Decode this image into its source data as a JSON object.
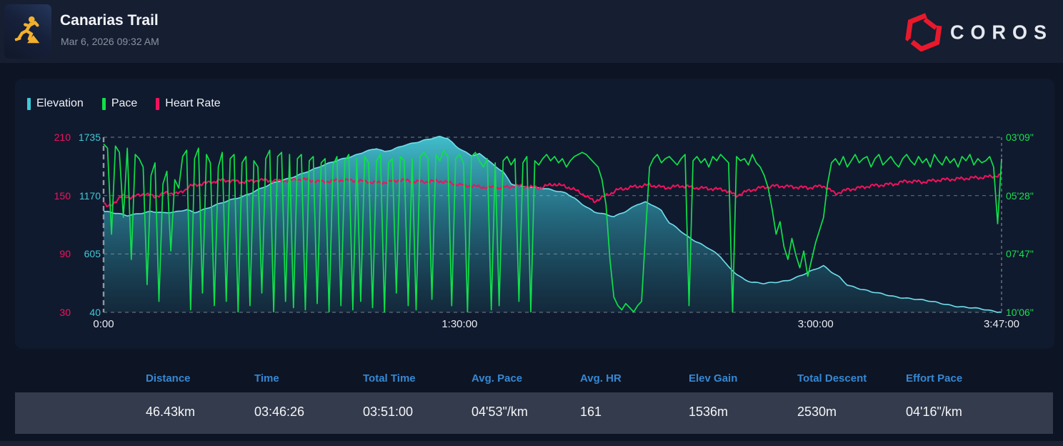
{
  "header": {
    "title": "Canarias Trail",
    "datetime": "Mar 6, 2026 09:32 AM",
    "activity_icon": "trail-run-icon",
    "brand": "COROS",
    "brand_red": "#e8192c"
  },
  "legend": [
    {
      "label": "Elevation",
      "color": "#3fc9d6"
    },
    {
      "label": "Pace",
      "color": "#10e04a"
    },
    {
      "label": "Heart Rate",
      "color": "#f2125c"
    }
  ],
  "chart_data": {
    "type": "line",
    "x_unit": "minutes",
    "x_range": [
      0,
      227
    ],
    "x_ticks": [
      {
        "t": 0,
        "label": "0:00"
      },
      {
        "t": 90,
        "label": "1:30:00"
      },
      {
        "t": 180,
        "label": "3:00:00"
      },
      {
        "t": 227,
        "label": "3:47:00"
      }
    ],
    "grid": "horizontal-dashed",
    "axes": {
      "heart_rate": {
        "color": "#f31260",
        "range": [
          30,
          210
        ],
        "ticks": [
          210,
          150,
          90,
          30
        ]
      },
      "elevation": {
        "color": "#3fc9d6",
        "range": [
          40,
          1735
        ],
        "ticks": [
          1735,
          1170,
          605,
          40
        ]
      },
      "pace": {
        "color": "#17e14d",
        "range_seconds_per_km": [
          189,
          606
        ],
        "ticks": [
          "03'09\"",
          "05'28\"",
          "07'47\"",
          "10'06\""
        ]
      }
    },
    "series": [
      {
        "name": "Elevation",
        "unit": "m",
        "style": "area",
        "color": "#3fc9d6",
        "points": [
          [
            0,
            1020
          ],
          [
            3,
            995
          ],
          [
            6,
            975
          ],
          [
            9,
            1000
          ],
          [
            12,
            1020
          ],
          [
            15,
            1000
          ],
          [
            18,
            1005
          ],
          [
            21,
            1035
          ],
          [
            23,
            1010
          ],
          [
            27,
            1060
          ],
          [
            31,
            1110
          ],
          [
            35,
            1160
          ],
          [
            39,
            1230
          ],
          [
            43,
            1290
          ],
          [
            47,
            1335
          ],
          [
            51,
            1400
          ],
          [
            55,
            1455
          ],
          [
            59,
            1505
          ],
          [
            63,
            1555
          ],
          [
            66,
            1600
          ],
          [
            69,
            1625
          ],
          [
            71,
            1590
          ],
          [
            73,
            1610
          ],
          [
            76,
            1660
          ],
          [
            79,
            1690
          ],
          [
            82,
            1715
          ],
          [
            85,
            1735
          ],
          [
            87,
            1720
          ],
          [
            89,
            1650
          ],
          [
            91,
            1605
          ],
          [
            93,
            1562
          ],
          [
            95,
            1575
          ],
          [
            97,
            1520
          ],
          [
            99,
            1445
          ],
          [
            101,
            1400
          ],
          [
            103,
            1285
          ],
          [
            106,
            1262
          ],
          [
            109,
            1250
          ],
          [
            112,
            1230
          ],
          [
            114,
            1215
          ],
          [
            117,
            1195
          ],
          [
            119,
            1150
          ],
          [
            121,
            1090
          ],
          [
            124,
            1010
          ],
          [
            126,
            990
          ],
          [
            129,
            965
          ],
          [
            132,
            1022
          ],
          [
            135,
            1090
          ],
          [
            137,
            1105
          ],
          [
            139,
            1070
          ],
          [
            141,
            1020
          ],
          [
            143,
            905
          ],
          [
            145,
            860
          ],
          [
            147,
            795
          ],
          [
            150,
            720
          ],
          [
            153,
            655
          ],
          [
            156,
            575
          ],
          [
            158,
            480
          ],
          [
            160,
            415
          ],
          [
            162,
            360
          ],
          [
            164,
            330
          ],
          [
            167,
            315
          ],
          [
            170,
            330
          ],
          [
            173,
            352
          ],
          [
            176,
            395
          ],
          [
            179,
            440
          ],
          [
            182,
            485
          ],
          [
            184,
            430
          ],
          [
            186,
            385
          ],
          [
            188,
            310
          ],
          [
            191,
            270
          ],
          [
            194,
            235
          ],
          [
            197,
            215
          ],
          [
            200,
            195
          ],
          [
            204,
            175
          ],
          [
            208,
            150
          ],
          [
            212,
            125
          ],
          [
            216,
            100
          ],
          [
            220,
            80
          ],
          [
            224,
            55
          ],
          [
            227,
            40
          ]
        ]
      },
      {
        "name": "Heart Rate",
        "unit": "bpm",
        "style": "line",
        "color": "#f2125c",
        "points": [
          [
            0,
            142
          ],
          [
            1,
            138
          ],
          [
            3,
            144
          ],
          [
            5,
            150
          ],
          [
            7,
            148
          ],
          [
            10,
            152
          ],
          [
            13,
            149
          ],
          [
            16,
            153
          ],
          [
            19,
            152
          ],
          [
            22,
            160
          ],
          [
            26,
            163
          ],
          [
            30,
            166
          ],
          [
            35,
            164
          ],
          [
            40,
            166
          ],
          [
            45,
            165
          ],
          [
            50,
            167
          ],
          [
            55,
            164
          ],
          [
            60,
            166
          ],
          [
            65,
            165
          ],
          [
            70,
            163
          ],
          [
            75,
            166
          ],
          [
            80,
            164
          ],
          [
            85,
            165
          ],
          [
            90,
            161
          ],
          [
            95,
            159
          ],
          [
            100,
            158
          ],
          [
            105,
            160
          ],
          [
            110,
            158
          ],
          [
            114,
            162
          ],
          [
            118,
            158
          ],
          [
            121,
            152
          ],
          [
            124,
            144
          ],
          [
            127,
            150
          ],
          [
            130,
            156
          ],
          [
            134,
            159
          ],
          [
            138,
            161
          ],
          [
            142,
            158
          ],
          [
            146,
            160
          ],
          [
            150,
            158
          ],
          [
            154,
            157
          ],
          [
            157,
            156
          ],
          [
            160,
            150
          ],
          [
            163,
            155
          ],
          [
            166,
            158
          ],
          [
            170,
            160
          ],
          [
            174,
            159
          ],
          [
            178,
            158
          ],
          [
            182,
            160
          ],
          [
            185,
            152
          ],
          [
            188,
            156
          ],
          [
            191,
            158
          ],
          [
            194,
            160
          ],
          [
            197,
            161
          ],
          [
            200,
            162
          ],
          [
            203,
            165
          ],
          [
            207,
            164
          ],
          [
            211,
            166
          ],
          [
            215,
            167
          ],
          [
            219,
            168
          ],
          [
            223,
            169
          ],
          [
            227,
            171
          ]
        ]
      },
      {
        "name": "Pace",
        "unit": "seconds_per_km",
        "style": "line",
        "color": "#10e04a",
        "values_per_minute": [
          205,
          215,
          420,
          210,
          225,
          380,
          215,
          480,
          230,
          240,
          260,
          540,
          280,
          250,
          580,
          300,
          270,
          460,
          290,
          310,
          235,
          220,
          600,
          240,
          215,
          560,
          230,
          250,
          590,
          260,
          225,
          580,
          240,
          230,
          605,
          250,
          235,
          590,
          245,
          260,
          560,
          240,
          220,
          605,
          235,
          225,
          580,
          230,
          595,
          240,
          230,
          600,
          245,
          235,
          585,
          250,
          240,
          605,
          255,
          235,
          590,
          245,
          230,
          600,
          240,
          580,
          235,
          250,
          595,
          245,
          230,
          605,
          250,
          240,
          560,
          235,
          245,
          590,
          240,
          600,
          235,
          225,
          240,
          575,
          230,
          245,
          220,
          235,
          590,
          240,
          230,
          250,
          605,
          235,
          225,
          245,
          260,
          240,
          600,
          250,
          590,
          245,
          235,
          255,
          240,
          580,
          250,
          235,
          605,
          245,
          255,
          240,
          230,
          245,
          235,
          250,
          240,
          260,
          245,
          235,
          230,
          225,
          230,
          240,
          250,
          260,
          290,
          350,
          480,
          570,
          590,
          600,
          585,
          595,
          605,
          590,
          580,
          420,
          260,
          240,
          230,
          250,
          240,
          235,
          245,
          255,
          240,
          230,
          590,
          245,
          235,
          250,
          240,
          260,
          235,
          245,
          230,
          240,
          250,
          605,
          235,
          245,
          240,
          255,
          230,
          250,
          260,
          280,
          310,
          360,
          420,
          390,
          450,
          480,
          430,
          470,
          500,
          460,
          520,
          480,
          440,
          410,
          380,
          300,
          250,
          240,
          255,
          235,
          260,
          245,
          230,
          250,
          240,
          235,
          260,
          240,
          230,
          255,
          245,
          235,
          250,
          260,
          240,
          230,
          245,
          255,
          235,
          250,
          240,
          260,
          230,
          245,
          255,
          235,
          250,
          240,
          260,
          235,
          245,
          230,
          255,
          240,
          250,
          245,
          235,
          260,
          395,
          240
        ]
      }
    ]
  },
  "stats": {
    "columns": [
      {
        "label": "Distance",
        "value": "46.43km"
      },
      {
        "label": "Time",
        "value": "03:46:26"
      },
      {
        "label": "Total Time",
        "value": "03:51:00"
      },
      {
        "label": "Avg. Pace",
        "value": "04'53\"/km"
      },
      {
        "label": "Avg. HR",
        "value": "161"
      },
      {
        "label": "Elev Gain",
        "value": "1536m"
      },
      {
        "label": "Total Descent",
        "value": "2530m"
      },
      {
        "label": "Effort Pace",
        "value": "04'16\"/km"
      }
    ]
  }
}
